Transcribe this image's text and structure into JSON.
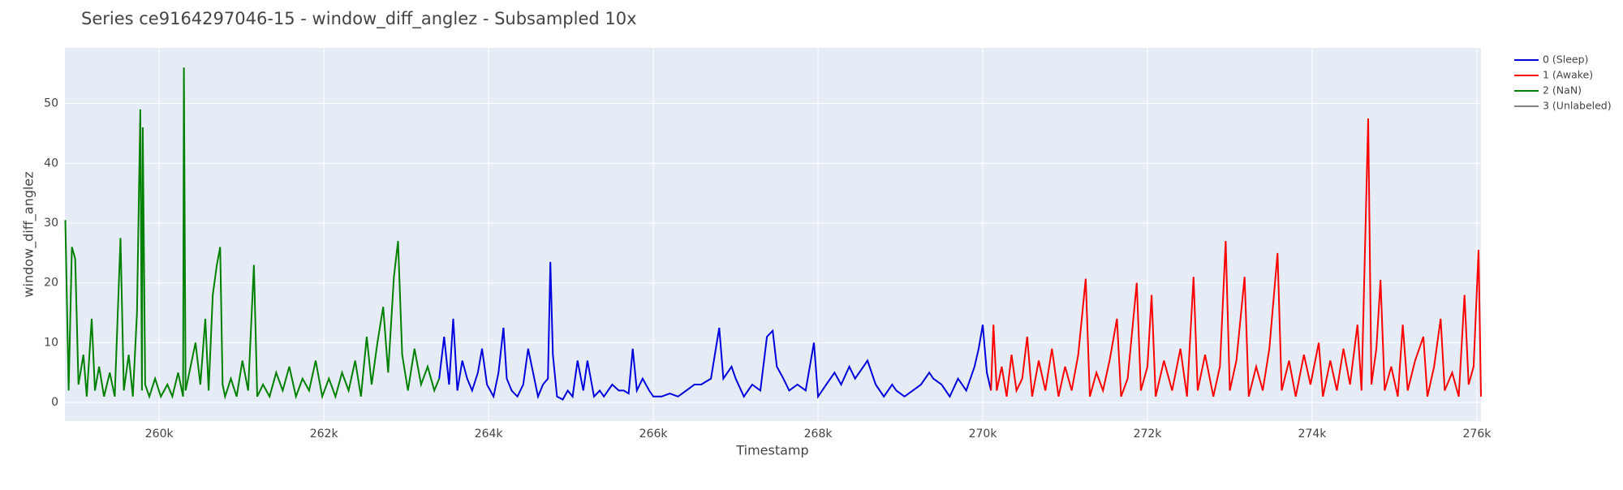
{
  "chart_data": {
    "type": "line",
    "title": "Series ce9164297046-15 - window_diff_anglez - Subsampled 10x",
    "x_label": "Timestamp",
    "y_label": "window_diff_anglez",
    "xlim": [
      258855,
      276050
    ],
    "ylim": [
      -3.1,
      59.3
    ],
    "xticks": [
      {
        "value": 260000,
        "label": "260k"
      },
      {
        "value": 262000,
        "label": "262k"
      },
      {
        "value": 264000,
        "label": "264k"
      },
      {
        "value": 266000,
        "label": "266k"
      },
      {
        "value": 268000,
        "label": "268k"
      },
      {
        "value": 270000,
        "label": "270k"
      },
      {
        "value": 272000,
        "label": "272k"
      },
      {
        "value": 274000,
        "label": "274k"
      },
      {
        "value": 276000,
        "label": "276k"
      }
    ],
    "yticks": [
      0,
      10,
      20,
      30,
      40,
      50
    ],
    "grid": true,
    "series": [
      {
        "name": "0 (Sleep)",
        "color": "#0000dd",
        "x": [
          263400,
          263460,
          263520,
          263570,
          263620,
          263680,
          263740,
          263800,
          263870,
          263920,
          263980,
          264060,
          264120,
          264180,
          264220,
          264280,
          264350,
          264420,
          264480,
          264540,
          264600,
          264660,
          264720,
          264750,
          264780,
          264830,
          264900,
          264960,
          265020,
          265080,
          265150,
          265200,
          265280,
          265350,
          265400,
          265500,
          265580,
          265640,
          265700,
          265750,
          265800,
          265870,
          265950,
          266000,
          266100,
          266200,
          266300,
          266400,
          266500,
          266580,
          266700,
          266800,
          266850,
          266950,
          267000,
          267100,
          267200,
          267300,
          267380,
          267450,
          267500,
          267580,
          267650,
          267750,
          267850,
          267950,
          268000,
          268100,
          268200,
          268280,
          268380,
          268450,
          268550,
          268600,
          268700,
          268800,
          268900,
          268950,
          269050,
          269150,
          269250,
          269350,
          269400,
          269500,
          269600,
          269700,
          269800,
          269900,
          269950,
          270000,
          270050,
          270100
        ],
        "values": [
          4,
          11,
          3,
          14,
          2,
          7,
          4,
          2,
          5,
          9,
          3,
          1,
          5,
          12.5,
          4,
          2,
          1,
          3,
          9,
          5,
          1,
          3,
          4,
          23.5,
          8,
          1,
          0.5,
          2,
          1,
          7,
          2,
          7,
          1,
          2,
          1,
          3,
          2,
          2,
          1.5,
          9,
          2,
          4,
          2,
          1,
          1,
          1.5,
          1,
          2,
          3,
          3,
          4,
          12.5,
          4,
          6,
          4,
          1,
          3,
          2,
          11,
          12,
          6,
          4,
          2,
          3,
          2,
          10,
          1,
          3,
          5,
          3,
          6,
          4,
          6,
          7,
          3,
          1,
          3,
          2,
          1,
          2,
          3,
          5,
          4,
          3,
          1,
          4,
          2,
          6,
          9,
          13,
          5,
          2
        ]
      },
      {
        "name": "1 (Awake)",
        "color": "#ff0000",
        "x": [
          270100,
          270130,
          270170,
          270230,
          270290,
          270350,
          270410,
          270480,
          270540,
          270600,
          270680,
          270760,
          270840,
          270920,
          271000,
          271080,
          271160,
          271250,
          271300,
          271380,
          271460,
          271540,
          271630,
          271680,
          271760,
          271870,
          271920,
          272000,
          272050,
          272100,
          272200,
          272300,
          272400,
          272480,
          272560,
          272610,
          272700,
          272800,
          272880,
          272950,
          273000,
          273080,
          273180,
          273230,
          273320,
          273400,
          273480,
          273580,
          273630,
          273720,
          273800,
          273900,
          273980,
          274080,
          274130,
          274220,
          274300,
          274380,
          274460,
          274550,
          274600,
          274680,
          274720,
          274780,
          274830,
          274880,
          274960,
          275040,
          275100,
          275160,
          275250,
          275350,
          275400,
          275480,
          275560,
          275610,
          275700,
          275780,
          275850,
          275900,
          275960,
          276020,
          276050
        ],
        "values": [
          2,
          13,
          2,
          6,
          1,
          8,
          2,
          4,
          11,
          1,
          7,
          2,
          9,
          1,
          6,
          2,
          8,
          20.7,
          1,
          5,
          2,
          7,
          14,
          1,
          4,
          20,
          2,
          6,
          18,
          1,
          7,
          2,
          9,
          1,
          21,
          2,
          8,
          1,
          6,
          27,
          2,
          7,
          21,
          1,
          6,
          2,
          9,
          25,
          2,
          7,
          1,
          8,
          3,
          10,
          1,
          7,
          2,
          9,
          3,
          13,
          2,
          47.5,
          3,
          9,
          20.5,
          2,
          6,
          1,
          13,
          2,
          7,
          11,
          1,
          6,
          14,
          2,
          5,
          1,
          18,
          3,
          6,
          25.5,
          1
        ]
      },
      {
        "name": "2 (NaN)",
        "color": "#008000",
        "x": [
          258860,
          258900,
          258940,
          258980,
          259020,
          259080,
          259120,
          259180,
          259220,
          259270,
          259330,
          259400,
          259460,
          259530,
          259570,
          259630,
          259680,
          259730,
          259770,
          259790,
          259800,
          259830,
          259880,
          259950,
          260020,
          260100,
          260160,
          260230,
          260290,
          260300,
          260320,
          260380,
          260440,
          260500,
          260560,
          260600,
          260650,
          260700,
          260740,
          260770,
          260800,
          260870,
          260940,
          261010,
          261080,
          261150,
          261190,
          261260,
          261340,
          261420,
          261500,
          261580,
          261660,
          261740,
          261820,
          261900,
          261980,
          262060,
          262140,
          262220,
          262300,
          262380,
          262450,
          262520,
          262580,
          262650,
          262720,
          262780,
          262850,
          262900,
          262950,
          263020,
          263100,
          263180,
          263260,
          263340,
          263400
        ],
        "values": [
          30.5,
          2,
          26,
          24,
          3,
          8,
          1,
          14,
          2,
          6,
          1,
          5,
          1,
          27.5,
          2,
          8,
          1,
          15,
          49,
          2,
          46,
          3,
          1,
          4,
          1,
          3,
          1,
          5,
          1,
          56,
          2,
          6,
          10,
          3,
          14,
          2,
          18,
          23,
          26,
          3,
          1,
          4,
          1,
          7,
          2,
          23,
          1,
          3,
          1,
          5,
          2,
          6,
          1,
          4,
          2,
          7,
          1,
          4,
          1,
          5,
          2,
          7,
          1,
          11,
          3,
          10,
          16,
          5,
          21,
          27,
          8,
          2,
          9,
          3,
          6,
          2,
          4
        ]
      },
      {
        "name": "3 (Unlabeled)",
        "color": "#808080",
        "x": [],
        "values": []
      }
    ]
  }
}
